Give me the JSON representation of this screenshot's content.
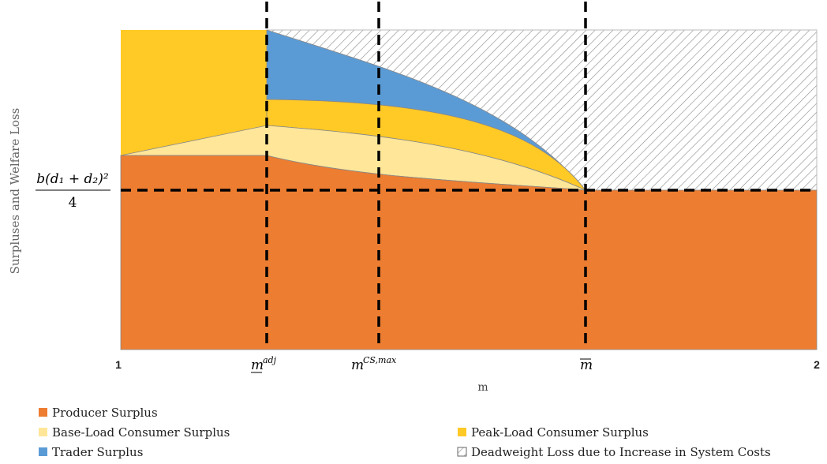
{
  "axes": {
    "y_label": "Surpluses and Welfare Loss",
    "x_label": "m",
    "x_start": "1",
    "x_end": "2",
    "y_marker": {
      "numerator": "b(d₁ + d₂)²",
      "denominator": "4"
    }
  },
  "x_markers": [
    {
      "base": "m",
      "sup": "adj"
    },
    {
      "base": "m",
      "sup": "CS,max"
    },
    {
      "base": "m"
    }
  ],
  "legend": [
    "Producer Surplus",
    "Base-Load Consumer Surplus",
    "Peak-Load Consumer Surplus",
    "Trader Surplus",
    "Deadweight Loss due to Increase in System Costs"
  ]
}
